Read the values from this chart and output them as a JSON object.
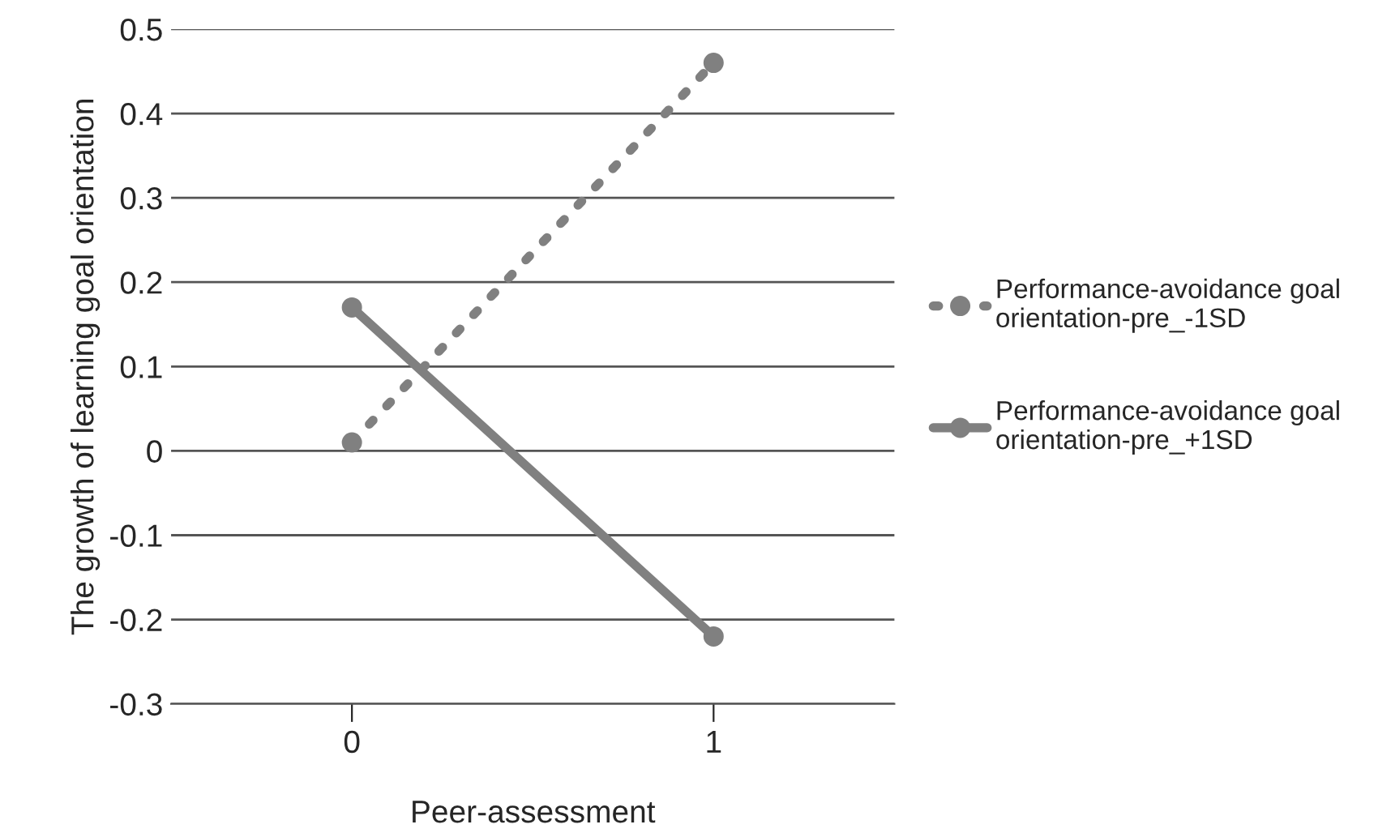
{
  "chart_data": {
    "type": "line",
    "xlabel": "Peer-assessment",
    "ylabel": "The growth of learning goal orientation",
    "categories": [
      "0",
      "1"
    ],
    "series": [
      {
        "name": "Performance-avoidance goal orientation-pre_-1SD",
        "color": "#808080",
        "values": [
          0.01,
          0.46
        ],
        "line_style": "dotted"
      },
      {
        "name": "Performance-avoidance goal orientation-pre_+1SD",
        "color": "#808080",
        "values": [
          0.17,
          -0.22
        ],
        "line_style": "solid"
      }
    ],
    "ylim": [
      -0.3,
      0.5
    ],
    "yticks": [
      -0.3,
      -0.2,
      -0.1,
      0,
      0.1,
      0.2,
      0.3,
      0.4,
      0.5
    ],
    "grid": "y",
    "legend": "right",
    "marker": "circle"
  }
}
